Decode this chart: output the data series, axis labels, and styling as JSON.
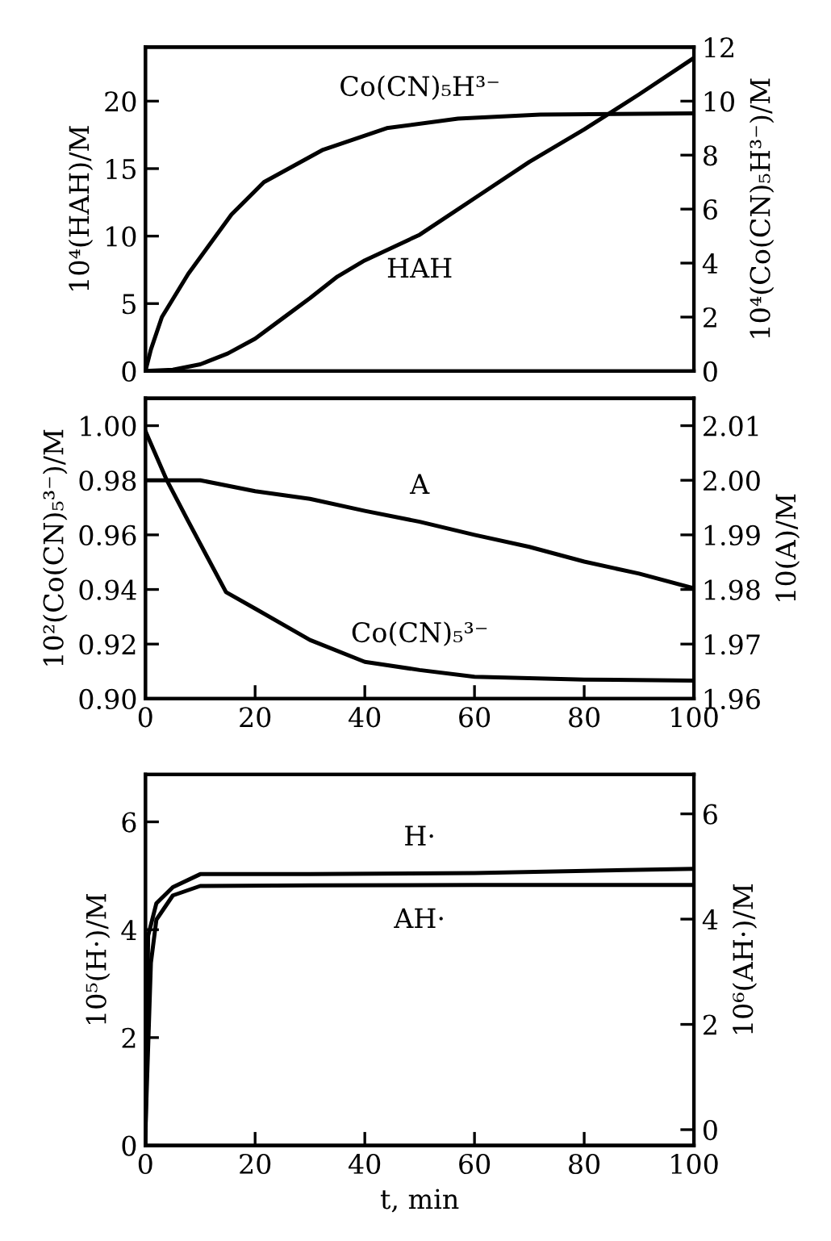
{
  "chart_data": [
    {
      "type": "line",
      "xlim": [
        0,
        100
      ],
      "ylim": [
        0,
        24
      ],
      "yticks": [
        0,
        5,
        10,
        15,
        20
      ],
      "y2lim": [
        0,
        12
      ],
      "y2ticks": [
        0,
        2,
        4,
        6,
        8,
        10,
        12
      ],
      "tick_labels": "y",
      "ylabel": "10⁴(HAH)/M",
      "y2label": "10⁴(Co(CN)₅H³⁻)/M",
      "grid": false,
      "legend": false,
      "series": [
        {
          "name": "HAH",
          "color": "#000000",
          "x": [
            0,
            5,
            10,
            15,
            20,
            25,
            30,
            35,
            40,
            50,
            60,
            70,
            80,
            90,
            100
          ],
          "values": [
            0,
            0.1,
            0.5,
            1.3,
            2.4,
            3.9,
            5.4,
            7.0,
            8.2,
            10.1,
            12.8,
            15.5,
            17.9,
            20.5,
            23.2
          ]
        },
        {
          "name": "Co(CN)₅H³⁻",
          "color": "#000000",
          "axis": "y2",
          "x": [
            0,
            1,
            3,
            7.8,
            15.7,
            21.6,
            32.4,
            44,
            57,
            72,
            100
          ],
          "values": [
            0,
            0.8,
            2.0,
            3.6,
            5.8,
            7.0,
            8.2,
            9.0,
            9.35,
            9.5,
            9.55
          ]
        }
      ]
    },
    {
      "type": "line",
      "xlim": [
        0,
        100
      ],
      "xticks": [
        0,
        20,
        40,
        60,
        80,
        100
      ],
      "ylim": [
        0.9,
        1.01
      ],
      "yticks": [
        {
          "value": 0.9,
          "label": "0.90"
        },
        0.92,
        0.94,
        0.96,
        0.98,
        {
          "value": 1.0,
          "label": "1.00"
        }
      ],
      "y2lim": [
        1.96,
        2.015
      ],
      "y2ticks": [
        1.96,
        1.97,
        1.98,
        1.99,
        {
          "value": 2.0,
          "label": "2.00"
        },
        2.01
      ],
      "ylabel": "10²(Co(CN)₅³⁻)/M",
      "y2label": "10(A)/M",
      "grid": false,
      "legend": false,
      "series": [
        {
          "name": "Co(CN)₅³⁻",
          "color": "#000000",
          "x": [
            0,
            3.9,
            7.8,
            14.7,
            20,
            30,
            40,
            50,
            60,
            80,
            100
          ],
          "values": [
            0.998,
            0.98,
            0.965,
            0.939,
            0.933,
            0.9215,
            0.9135,
            0.9105,
            0.908,
            0.907,
            0.9066
          ]
        },
        {
          "name": "A",
          "color": "#000000",
          "axis": "y2",
          "x": [
            0,
            10,
            20,
            30,
            40,
            50,
            60,
            70,
            80,
            90,
            100
          ],
          "values": [
            2.0,
            2.0,
            1.998,
            1.9966,
            1.9944,
            1.9924,
            1.99,
            1.9878,
            1.9851,
            1.9829,
            1.9802
          ]
        }
      ]
    },
    {
      "type": "line",
      "xlim": [
        0,
        100
      ],
      "xticks": [
        0,
        20,
        40,
        60,
        80,
        100
      ],
      "ylim": [
        0,
        6.88
      ],
      "yticks": [
        0,
        2,
        4,
        6
      ],
      "y2lim": [
        -0.3,
        6.75
      ],
      "y2ticks": [
        0,
        2,
        4,
        6
      ],
      "xlabel": "t, min",
      "ylabel": "10⁵(H·)/M",
      "y2label": "10⁶(AH·)/M",
      "grid": false,
      "legend": false,
      "series": [
        {
          "name": "H·",
          "color": "#000000",
          "x": [
            0,
            0.5,
            2,
            5,
            10,
            30,
            60,
            100
          ],
          "values": [
            0,
            3.89,
            4.49,
            4.79,
            5.03,
            5.03,
            5.05,
            5.13
          ]
        },
        {
          "name": "AH·",
          "color": "#000000",
          "axis": "y2",
          "x": [
            0,
            1,
            2,
            5,
            10,
            30,
            60,
            100
          ],
          "values": [
            0,
            3.17,
            3.99,
            4.45,
            4.63,
            4.64,
            4.65,
            4.65
          ]
        }
      ]
    }
  ]
}
